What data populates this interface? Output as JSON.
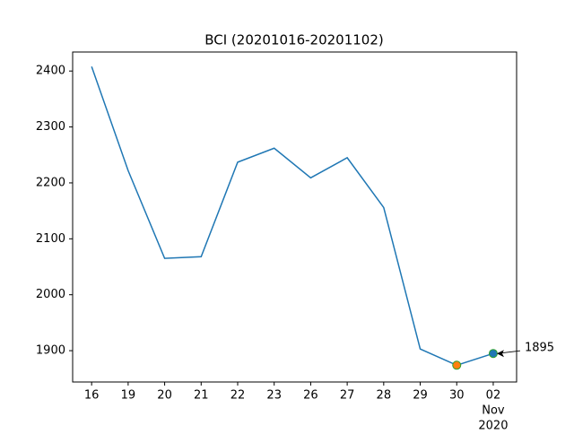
{
  "chart_data": {
    "type": "line",
    "title": "BCI (20201016-20201102)",
    "categories": [
      "16",
      "19",
      "20",
      "21",
      "22",
      "23",
      "26",
      "27",
      "28",
      "29",
      "30",
      "02"
    ],
    "last_tick_sublabels": [
      "Nov",
      "2020"
    ],
    "series": [
      {
        "color": "#1f77b4",
        "values": [
          2408,
          2222,
          2065,
          2068,
          2237,
          2262,
          2209,
          2245,
          2156,
          1903,
          1874,
          1895
        ]
      }
    ],
    "highlights": [
      {
        "index": 10,
        "fill": "#ff7f0e",
        "edge": "#2ca02c"
      },
      {
        "index": 11,
        "fill": "#1f77b4",
        "edge": "#2ca02c"
      }
    ],
    "annotation": {
      "text": "1895",
      "index": 11
    },
    "xlim": [
      -0.52,
      11.64
    ],
    "ylim": [
      1844,
      2434
    ],
    "yticks": [
      1900,
      2000,
      2100,
      2200,
      2300,
      2400
    ]
  }
}
